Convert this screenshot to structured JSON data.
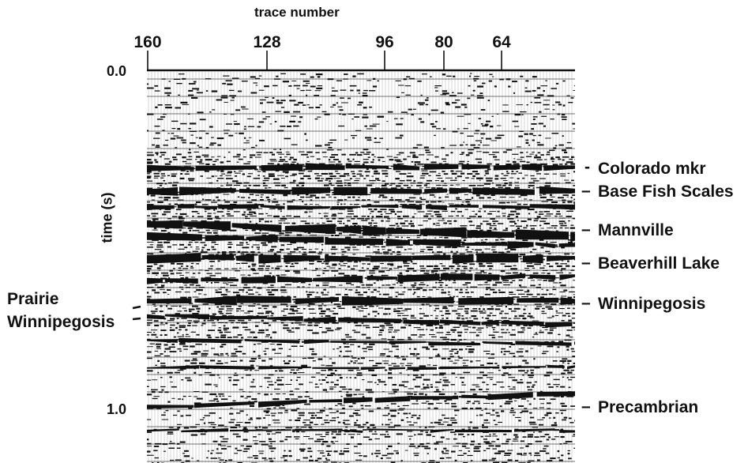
{
  "figure": {
    "x_axis_title": "trace number",
    "y_axis_title": "time (s)",
    "trace_ticks": [
      "160",
      "128",
      "96",
      "80",
      "64"
    ],
    "time_ticks": [
      "0.0",
      "1.0"
    ],
    "horizons_right": [
      {
        "marker": "-",
        "label": "Colorado mkr"
      },
      {
        "marker": "–",
        "label": "Base Fish Scales"
      },
      {
        "marker": "–",
        "label": "Mannville"
      },
      {
        "marker": "–",
        "label": "Beaverhill Lake"
      },
      {
        "marker": "–",
        "label": "Winnipegosis"
      },
      {
        "marker": "–",
        "label": "Precambrian"
      }
    ],
    "horizons_left": [
      "Prairie",
      "Winnipegosis"
    ],
    "colors": {
      "ink": "#111111",
      "paper": "#ffffff"
    }
  }
}
